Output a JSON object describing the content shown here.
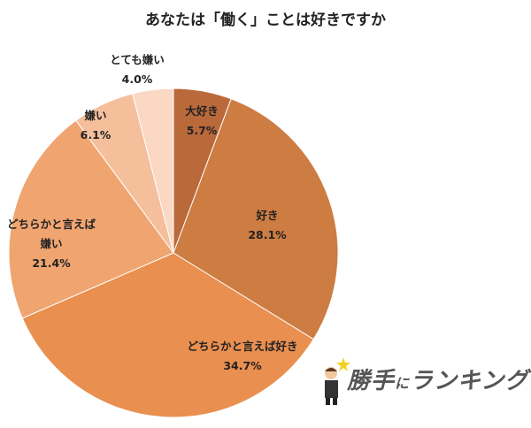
{
  "chart_data": {
    "type": "pie",
    "title": "あなたは「働く」ことは好きですか",
    "start": "top",
    "direction": "clockwise",
    "slices": [
      {
        "label": "大好き",
        "value": 5.7,
        "display": "5.7%",
        "color": "#b9693a"
      },
      {
        "label": "好き",
        "value": 28.1,
        "display": "28.1%",
        "color": "#cd7c42"
      },
      {
        "label": "どちらかと言えば好き",
        "value": 34.7,
        "display": "34.7%",
        "color": "#e98f4f"
      },
      {
        "label": "どちらかと言えば嫌い",
        "value": 21.4,
        "display": "21.4%",
        "color": "#f0a470",
        "label_lines": [
          "どちらかと言えば",
          "嫌い"
        ]
      },
      {
        "label": "嫌い",
        "value": 6.1,
        "display": "6.1%",
        "color": "#f5bf9c"
      },
      {
        "label": "とても嫌い",
        "value": 4.0,
        "display": "4.0%",
        "color": "#fad8c4"
      }
    ]
  },
  "logo": {
    "text_main": "勝手",
    "text_ni": "に",
    "text_end": "ランキング"
  }
}
